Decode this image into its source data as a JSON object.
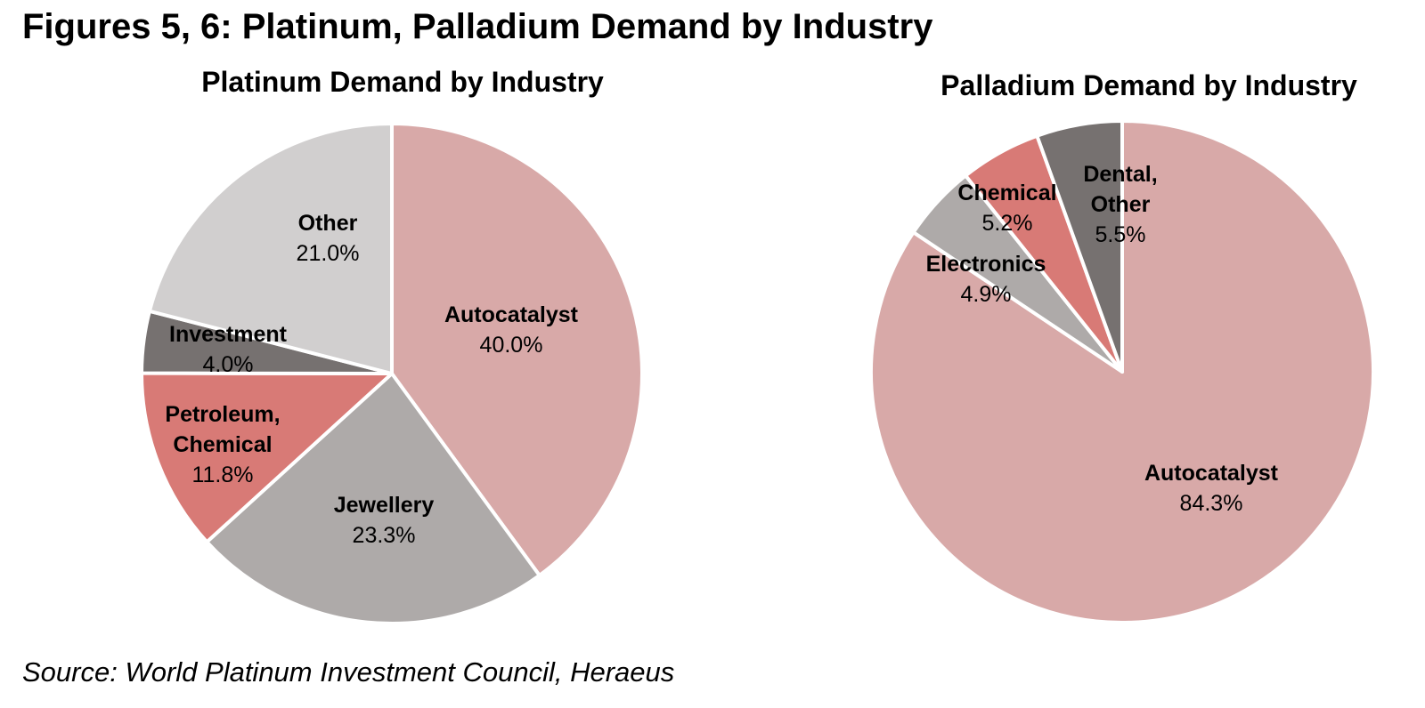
{
  "figure": {
    "title": "Figures 5, 6: Platinum, Palladium Demand by Industry",
    "source": "Source: World Platinum Investment Council, Heraeus"
  },
  "chart_data": [
    {
      "type": "pie",
      "title": "Platinum Demand by Industry",
      "start": "12 o'clock",
      "direction": "clockwise",
      "slices": [
        {
          "label": [
            "Autocatalyst"
          ],
          "value": 40.0,
          "value_label": "40.0%",
          "color": "#d8a9a8"
        },
        {
          "label": [
            "Jewellery"
          ],
          "value": 23.3,
          "value_label": "23.3%",
          "color": "#aeaaa9"
        },
        {
          "label": [
            "Petroleum,",
            "Chemical"
          ],
          "value": 11.8,
          "value_label": "11.8%",
          "color": "#d87a76"
        },
        {
          "label": [
            "Investment"
          ],
          "value": 4.0,
          "value_label": "4.0%",
          "color": "#767170"
        },
        {
          "label": [
            "Other"
          ],
          "value": 21.0,
          "value_label": "21.0%",
          "color": "#d1cfcf"
        }
      ]
    },
    {
      "type": "pie",
      "title": "Palladium Demand by Industry",
      "start": "12 o'clock",
      "direction": "clockwise",
      "slices": [
        {
          "label": [
            "Autocatalyst"
          ],
          "value": 84.3,
          "value_label": "84.3%",
          "color": "#d8a9a8"
        },
        {
          "label": [
            "Electronics"
          ],
          "value": 4.9,
          "value_label": "4.9%",
          "color": "#aeaaa9"
        },
        {
          "label": [
            "Chemical"
          ],
          "value": 5.2,
          "value_label": "5.2%",
          "color": "#d87a76"
        },
        {
          "label": [
            "Dental,",
            "Other"
          ],
          "value": 5.5,
          "value_label": "5.5%",
          "color": "#767170"
        }
      ]
    }
  ]
}
